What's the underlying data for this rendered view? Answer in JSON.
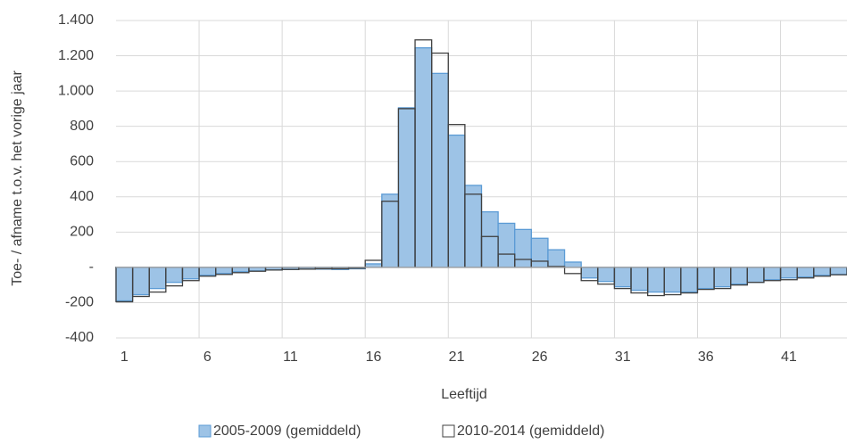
{
  "chart_data": {
    "type": "bar",
    "overlap": true,
    "x_label": "Leeftijd",
    "y_label": "Toe- / afname t.o.v. het vorige jaar",
    "categories": [
      "1",
      null,
      null,
      null,
      null,
      "6",
      null,
      null,
      null,
      null,
      "11",
      null,
      null,
      null,
      null,
      "16",
      null,
      null,
      null,
      null,
      "21",
      null,
      null,
      null,
      null,
      "26",
      null,
      null,
      null,
      null,
      "31",
      null,
      null,
      null,
      null,
      "36",
      null,
      null,
      null,
      null,
      "41",
      null,
      null,
      null
    ],
    "series": [
      {
        "name": "2005-2009 (gemiddeld)",
        "color": "#9dc3e6",
        "edgecolor": "#5b9bd5",
        "values": [
          -190,
          -155,
          -120,
          -85,
          -65,
          -45,
          -35,
          -25,
          -20,
          -15,
          -12,
          -10,
          -10,
          -12,
          -8,
          20,
          415,
          905,
          1245,
          1100,
          750,
          465,
          315,
          250,
          215,
          165,
          100,
          30,
          -60,
          -80,
          -110,
          -130,
          -140,
          -140,
          -140,
          -120,
          -110,
          -95,
          -85,
          -70,
          -60,
          -55,
          -45,
          -40
        ]
      },
      {
        "name": "2010-2014 (gemiddeld)",
        "color": "none",
        "edgecolor": "#404040",
        "values": [
          -195,
          -165,
          -140,
          -105,
          -75,
          -50,
          -40,
          -30,
          -22,
          -15,
          -12,
          -10,
          -8,
          -8,
          -5,
          40,
          375,
          900,
          1290,
          1215,
          810,
          415,
          175,
          75,
          45,
          35,
          5,
          -35,
          -75,
          -95,
          -120,
          -145,
          -160,
          -155,
          -145,
          -125,
          -120,
          -100,
          -85,
          -75,
          -70,
          -60,
          -50,
          -42
        ]
      }
    ],
    "ylim": [
      -400,
      1400
    ],
    "yticks": [
      -400,
      -200,
      {
        "value": 0,
        "label": "-"
      },
      200,
      400,
      600,
      800,
      {
        "value": 1000,
        "label": "1.000"
      },
      {
        "value": 1200,
        "label": "1.200"
      },
      {
        "value": 1400,
        "label": "1.400"
      }
    ],
    "grid": true,
    "legend": "bottom"
  }
}
